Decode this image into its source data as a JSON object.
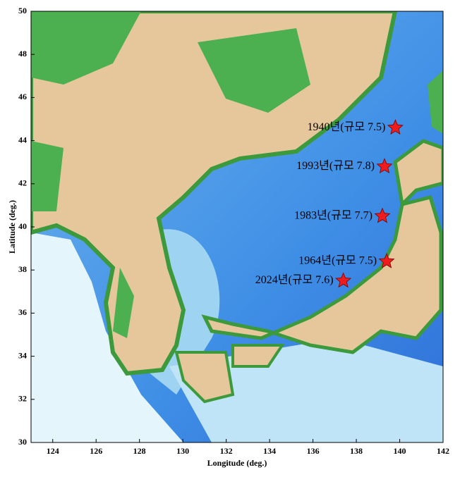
{
  "chart_data": {
    "type": "map",
    "xlabel": "Longitude (deg.)",
    "ylabel": "Latitude (deg.)",
    "xlim": [
      123,
      142
    ],
    "ylim": [
      30,
      50
    ],
    "xticks": [
      124,
      126,
      128,
      130,
      132,
      134,
      136,
      138,
      140,
      142
    ],
    "yticks": [
      30,
      32,
      34,
      36,
      38,
      40,
      42,
      44,
      46,
      48,
      50
    ],
    "marker_color": "#ee1c1c",
    "x": [
      139.8,
      139.3,
      139.2,
      139.4,
      137.4
    ],
    "y": [
      44.6,
      42.8,
      40.5,
      38.4,
      37.5
    ],
    "labels": [
      "1940년(규모 7.5)",
      "1993년(규모 7.8)",
      "1983년(규모 7.7)",
      "1964년(규모 7.5)",
      "2024년(규모 7.6)"
    ]
  }
}
